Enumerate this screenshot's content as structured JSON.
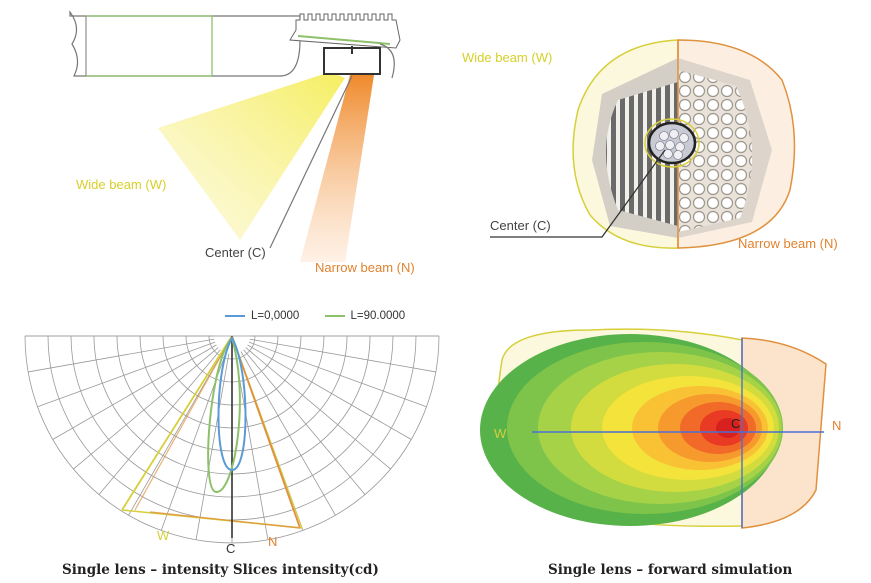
{
  "colors": {
    "wide": "#e6e046",
    "narrow": "#ec8a33",
    "center": "#555555",
    "blue": "#5b9bd5",
    "green": "#8dc06a"
  },
  "top_left": {
    "wide_label": "Wide beam (W)",
    "center_label": "Center (C)",
    "narrow_label": "Narrow beam (N)"
  },
  "top_right": {
    "wide_label": "Wide beam (W)",
    "center_label": "Center (C)",
    "narrow_label": "Narrow beam (N)"
  },
  "bottom_left": {
    "legend": [
      {
        "label": "L=0,0000",
        "color": "#5b9bd5"
      },
      {
        "label": "L=90.0000",
        "color": "#8dc06a"
      }
    ],
    "w_label": "W",
    "c_label": "C",
    "n_label": "N",
    "caption": "Single lens – intensity Slices intensity(cd)"
  },
  "bottom_right": {
    "w_label": "W",
    "c_label": "C",
    "n_label": "N",
    "caption": "Single lens – forward simulation"
  }
}
